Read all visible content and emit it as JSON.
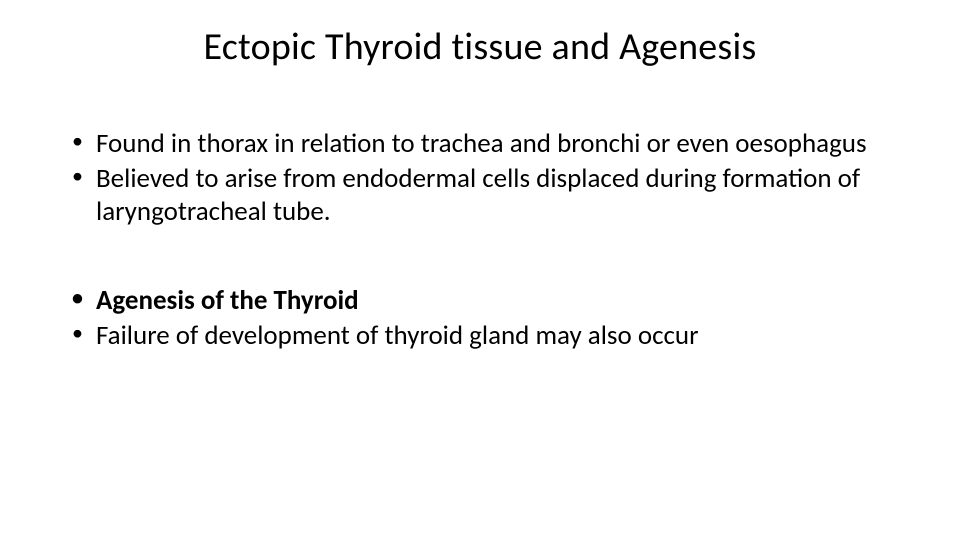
{
  "slide": {
    "title": "Ectopic Thyroid tissue and Agenesis",
    "title_fontsize": 38,
    "title_color": "#000000",
    "background_color": "#ffffff",
    "body_fontsize": 27,
    "body_color": "#000000",
    "bullet_char": "•",
    "groups": [
      {
        "items": [
          {
            "text": "Found in thorax in relation to trachea and bronchi or even oesophagus",
            "bold": false
          },
          {
            "text": "Believed to arise from endodermal cells displaced during formation of laryngotracheal tube.",
            "bold": false
          }
        ]
      },
      {
        "items": [
          {
            "text": "Agenesis of the Thyroid",
            "bold": true
          },
          {
            "text": "Failure of development of thyroid gland may also occur",
            "bold": false
          }
        ]
      }
    ]
  }
}
